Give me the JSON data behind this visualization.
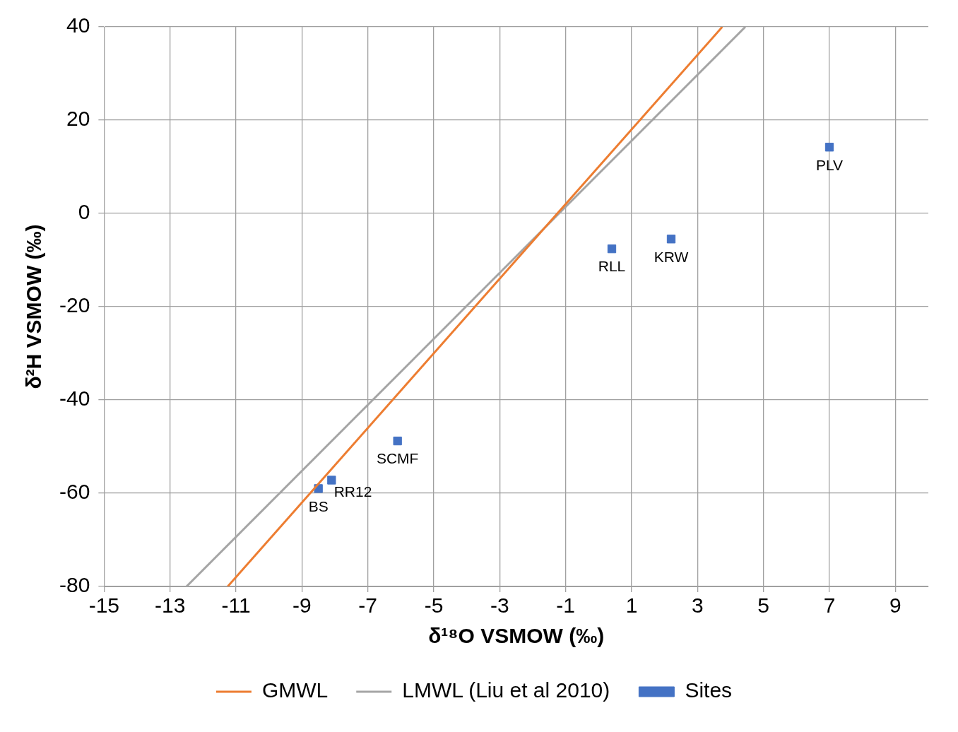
{
  "chart_data": {
    "type": "scatter",
    "xlabel": "δ¹⁸O VSMOW (‰)",
    "ylabel": "δ²H VSMOW (‰)",
    "series": [
      {
        "name": "GMWL",
        "type": "line",
        "color": "#ed7d31",
        "x": [
          -11.25,
          3.75
        ],
        "values": [
          -80,
          40
        ]
      },
      {
        "name": "LMWL (Liu et al 2010)",
        "type": "line",
        "color": "#a5a5a5",
        "x": [
          -12.5,
          4.45
        ],
        "values": [
          -80,
          40
        ]
      },
      {
        "name": "Sites",
        "type": "scatter",
        "color": "#4472c4",
        "marker": "square",
        "x": [
          -8.5,
          -8.1,
          -6.1,
          0.4,
          2.2,
          7.0
        ],
        "values": [
          -59,
          -57.2,
          -48.8,
          -7.6,
          -5.5,
          14.2
        ]
      }
    ],
    "annotations": [
      {
        "text": "BS",
        "x": -8.5,
        "y": -59
      },
      {
        "text": "RR12",
        "x": -8.1,
        "y": -57.2
      },
      {
        "text": "SCMF",
        "x": -6.1,
        "y": -48.8
      },
      {
        "text": "RLL",
        "x": 0.4,
        "y": -7.6
      },
      {
        "text": "KRW",
        "x": 2.2,
        "y": -5.5
      },
      {
        "text": "PLV",
        "x": 7.0,
        "y": 14.2
      }
    ],
    "xlim": [
      -15,
      10
    ],
    "xticks": [
      -15,
      -13,
      -11,
      -9,
      -7,
      -5,
      -3,
      -1,
      1,
      3,
      5,
      7,
      9
    ],
    "ylim": [
      -80,
      40
    ],
    "yticks": [
      -80,
      -60,
      -40,
      -20,
      0,
      20,
      40
    ],
    "grid": true,
    "legend": "bottom"
  }
}
